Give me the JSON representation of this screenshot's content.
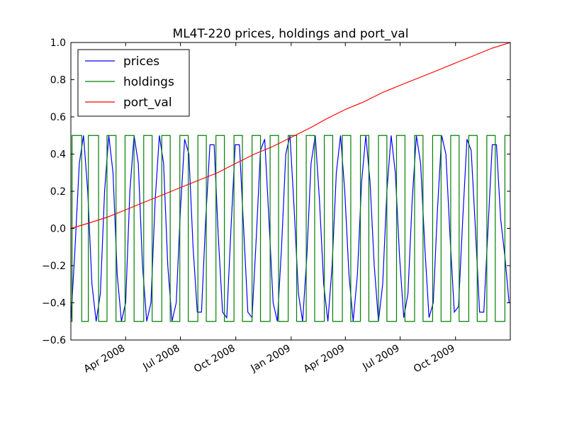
{
  "chart_data": {
    "type": "line",
    "title": "ML4T-220 prices, holdings and port_val",
    "xlabel": "",
    "ylabel": "",
    "xlim": [
      "2008-01-01",
      "2009-12-31"
    ],
    "ylim": [
      -0.6,
      1.0
    ],
    "yticks": [
      -0.6,
      -0.4,
      -0.2,
      0.0,
      0.2,
      0.4,
      0.6,
      0.8,
      1.0
    ],
    "ytick_labels": [
      "−0.6",
      "−0.4",
      "−0.2",
      "0.0",
      "0.2",
      "0.4",
      "0.6",
      "0.8",
      "1.0"
    ],
    "xticks": [
      "2008-04-01",
      "2008-07-01",
      "2008-10-01",
      "2009-01-01",
      "2009-04-01",
      "2009-07-01",
      "2009-10-01"
    ],
    "xtick_labels": [
      "Apr 2008",
      "Jul 2008",
      "Oct 2008",
      "Jan 2009",
      "Apr 2009",
      "Jul 2009",
      "Oct 2009"
    ],
    "grid": false,
    "legend": "upper-left",
    "series": [
      {
        "name": "prices",
        "color": "#0000ff",
        "x": [
          "2008-01-01",
          "2008-01-08",
          "2008-01-15",
          "2008-01-22",
          "2008-01-29",
          "2008-02-05",
          "2008-02-12",
          "2008-02-19",
          "2008-02-26",
          "2008-03-04",
          "2008-03-11",
          "2008-03-18",
          "2008-03-25",
          "2008-04-01",
          "2008-04-08",
          "2008-04-15",
          "2008-04-22",
          "2008-04-29",
          "2008-05-06",
          "2008-05-13",
          "2008-05-20",
          "2008-05-27",
          "2008-06-03",
          "2008-06-10",
          "2008-06-17",
          "2008-06-24",
          "2008-07-01",
          "2008-07-08",
          "2008-07-15",
          "2008-07-22",
          "2008-07-29",
          "2008-08-05",
          "2008-08-12",
          "2008-08-19",
          "2008-08-26",
          "2008-09-02",
          "2008-09-09",
          "2008-09-16",
          "2008-09-23",
          "2008-09-30",
          "2008-10-07",
          "2008-10-14",
          "2008-10-21",
          "2008-10-28",
          "2008-11-04",
          "2008-11-11",
          "2008-11-18",
          "2008-11-25",
          "2008-12-02",
          "2008-12-09",
          "2008-12-16",
          "2008-12-23",
          "2008-12-30",
          "2009-01-06",
          "2009-01-13",
          "2009-01-20",
          "2009-01-27",
          "2009-02-03",
          "2009-02-10",
          "2009-02-17",
          "2009-02-24",
          "2009-03-03",
          "2009-03-10",
          "2009-03-17",
          "2009-03-24",
          "2009-03-31",
          "2009-04-07",
          "2009-04-14",
          "2009-04-21",
          "2009-04-28",
          "2009-05-05",
          "2009-05-12",
          "2009-05-19",
          "2009-05-26",
          "2009-06-02",
          "2009-06-09",
          "2009-06-16",
          "2009-06-23",
          "2009-06-30",
          "2009-07-07",
          "2009-07-14",
          "2009-07-21",
          "2009-07-28",
          "2009-08-04",
          "2009-08-11",
          "2009-08-18",
          "2009-08-25",
          "2009-09-01",
          "2009-09-08",
          "2009-09-15",
          "2009-09-22",
          "2009-09-29",
          "2009-10-06",
          "2009-10-13",
          "2009-10-20",
          "2009-10-27",
          "2009-11-03",
          "2009-11-10",
          "2009-11-17",
          "2009-11-24",
          "2009-12-01",
          "2009-12-08",
          "2009-12-15",
          "2009-12-22",
          "2009-12-29"
        ],
        "y": [
          -0.5,
          -0.1,
          0.35,
          0.5,
          0.2,
          -0.3,
          -0.5,
          -0.35,
          0.2,
          0.5,
          0.3,
          -0.25,
          -0.5,
          -0.4,
          0.2,
          0.5,
          0.35,
          -0.2,
          -0.5,
          -0.4,
          0.15,
          0.5,
          0.35,
          -0.2,
          -0.5,
          -0.4,
          0.1,
          0.48,
          0.4,
          -0.1,
          -0.45,
          -0.45,
          0.05,
          0.45,
          0.45,
          -0.05,
          -0.45,
          -0.48,
          0.0,
          0.45,
          0.45,
          0.0,
          -0.45,
          -0.48,
          -0.05,
          0.42,
          0.48,
          0.05,
          -0.4,
          -0.5,
          -0.1,
          0.4,
          0.5,
          0.1,
          -0.35,
          -0.5,
          -0.15,
          0.35,
          0.5,
          0.15,
          -0.3,
          -0.5,
          -0.2,
          0.3,
          0.5,
          0.2,
          -0.25,
          -0.5,
          -0.25,
          0.25,
          0.5,
          0.25,
          -0.2,
          -0.5,
          -0.3,
          0.2,
          0.5,
          0.3,
          -0.15,
          -0.48,
          -0.35,
          0.15,
          0.5,
          0.35,
          -0.1,
          -0.48,
          -0.4,
          0.1,
          0.5,
          0.4,
          -0.05,
          -0.45,
          -0.42,
          0.05,
          0.48,
          0.42,
          0.0,
          -0.45,
          -0.45,
          0.0,
          0.45,
          0.45,
          0.05,
          -0.15,
          -0.4
        ]
      },
      {
        "name": "holdings",
        "color": "#008000",
        "x": [
          "2008-01-01",
          "2008-01-03",
          "2008-01-03",
          "2008-01-19",
          "2008-01-19",
          "2008-01-30",
          "2008-01-30",
          "2008-02-16",
          "2008-02-16",
          "2008-03-01",
          "2008-03-01",
          "2008-03-16",
          "2008-03-16",
          "2008-03-31",
          "2008-03-31",
          "2008-04-15",
          "2008-04-15",
          "2008-05-01",
          "2008-05-01",
          "2008-05-15",
          "2008-05-15",
          "2008-05-31",
          "2008-05-31",
          "2008-06-14",
          "2008-06-14",
          "2008-06-30",
          "2008-06-30",
          "2008-07-14",
          "2008-07-14",
          "2008-07-30",
          "2008-07-30",
          "2008-08-13",
          "2008-08-13",
          "2008-08-29",
          "2008-08-29",
          "2008-09-12",
          "2008-09-12",
          "2008-09-28",
          "2008-09-28",
          "2008-10-12",
          "2008-10-12",
          "2008-10-28",
          "2008-10-28",
          "2008-11-11",
          "2008-11-11",
          "2008-11-27",
          "2008-11-27",
          "2008-12-11",
          "2008-12-11",
          "2008-12-27",
          "2008-12-27",
          "2009-01-10",
          "2009-01-10",
          "2009-01-26",
          "2009-01-26",
          "2009-02-09",
          "2009-02-09",
          "2009-02-25",
          "2009-02-25",
          "2009-03-11",
          "2009-03-11",
          "2009-03-27",
          "2009-03-27",
          "2009-04-10",
          "2009-04-10",
          "2009-04-26",
          "2009-04-26",
          "2009-05-10",
          "2009-05-10",
          "2009-05-26",
          "2009-05-26",
          "2009-06-09",
          "2009-06-09",
          "2009-06-25",
          "2009-06-25",
          "2009-07-09",
          "2009-07-09",
          "2009-07-25",
          "2009-07-25",
          "2009-08-08",
          "2009-08-08",
          "2009-08-24",
          "2009-08-24",
          "2009-09-07",
          "2009-09-07",
          "2009-09-23",
          "2009-09-23",
          "2009-10-07",
          "2009-10-07",
          "2009-10-23",
          "2009-10-23",
          "2009-11-06",
          "2009-11-06",
          "2009-11-22",
          "2009-11-22",
          "2009-12-06",
          "2009-12-06",
          "2009-12-22",
          "2009-12-22",
          "2009-12-31"
        ],
        "y": [
          -0.5,
          -0.5,
          0.5,
          0.5,
          -0.5,
          -0.5,
          0.5,
          0.5,
          -0.5,
          -0.5,
          0.5,
          0.5,
          -0.5,
          -0.5,
          0.5,
          0.5,
          -0.5,
          -0.5,
          0.5,
          0.5,
          -0.5,
          -0.5,
          0.5,
          0.5,
          -0.5,
          -0.5,
          0.5,
          0.5,
          -0.5,
          -0.5,
          0.5,
          0.5,
          -0.5,
          -0.5,
          0.5,
          0.5,
          -0.5,
          -0.5,
          0.5,
          0.5,
          -0.5,
          -0.5,
          0.5,
          0.5,
          -0.5,
          -0.5,
          0.5,
          0.5,
          -0.5,
          -0.5,
          0.5,
          0.5,
          -0.5,
          -0.5,
          0.5,
          0.5,
          -0.5,
          -0.5,
          0.5,
          0.5,
          -0.5,
          -0.5,
          0.5,
          0.5,
          -0.5,
          -0.5,
          0.5,
          0.5,
          -0.5,
          -0.5,
          0.5,
          0.5,
          -0.5,
          -0.5,
          0.5,
          0.5,
          -0.5,
          -0.5,
          0.5,
          0.5,
          -0.5,
          -0.5,
          0.5,
          0.5,
          -0.5,
          -0.5,
          0.5,
          0.5,
          -0.5,
          -0.5,
          0.5,
          0.5,
          -0.5,
          -0.5,
          0.5,
          0.5,
          -0.5,
          -0.5,
          0.5,
          0.5
        ]
      },
      {
        "name": "port_val",
        "color": "#ff0000",
        "x": [
          "2008-01-01",
          "2008-02-01",
          "2008-03-01",
          "2008-04-01",
          "2008-05-01",
          "2008-06-01",
          "2008-07-01",
          "2008-08-01",
          "2008-09-01",
          "2008-10-01",
          "2008-11-01",
          "2008-12-01",
          "2009-01-01",
          "2009-02-01",
          "2009-03-01",
          "2009-04-01",
          "2009-05-01",
          "2009-06-01",
          "2009-07-01",
          "2009-08-01",
          "2009-09-01",
          "2009-10-01",
          "2009-11-01",
          "2009-12-01",
          "2009-12-31"
        ],
        "y": [
          0.0,
          0.03,
          0.06,
          0.1,
          0.14,
          0.18,
          0.22,
          0.26,
          0.3,
          0.35,
          0.4,
          0.44,
          0.49,
          0.54,
          0.59,
          0.64,
          0.68,
          0.73,
          0.77,
          0.81,
          0.85,
          0.89,
          0.93,
          0.97,
          1.0
        ]
      }
    ]
  }
}
